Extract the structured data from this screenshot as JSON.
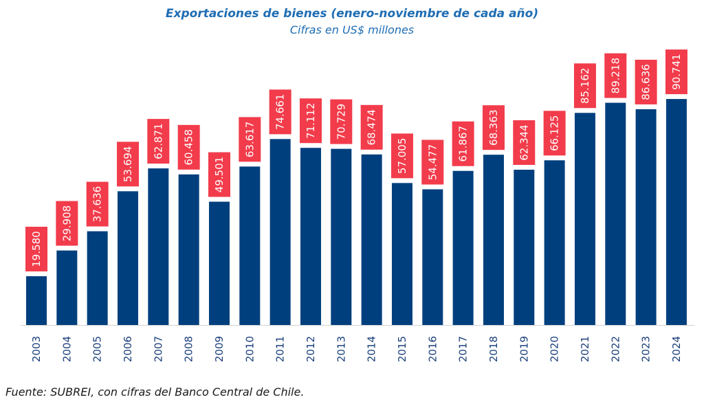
{
  "chart_data": {
    "type": "bar",
    "title": "Exportaciones de bienes (enero-noviembre de cada año)",
    "subtitle": "Cifras en US$ millones",
    "categories": [
      "2003",
      "2004",
      "2005",
      "2006",
      "2007",
      "2008",
      "2009",
      "2010",
      "2011",
      "2012",
      "2013",
      "2014",
      "2015",
      "2016",
      "2017",
      "2018",
      "2019",
      "2020",
      "2021",
      "2022",
      "2023",
      "2024"
    ],
    "values": [
      19580,
      29908,
      37636,
      53694,
      62871,
      60458,
      49501,
      63617,
      74661,
      71112,
      70729,
      68474,
      57005,
      54477,
      61867,
      68363,
      62344,
      66125,
      85162,
      89218,
      86636,
      90741
    ],
    "value_labels": [
      "19.580",
      "29.908",
      "37.636",
      "53.694",
      "62.871",
      "60.458",
      "49.501",
      "63.617",
      "74.661",
      "71.112",
      "70.729",
      "68.474",
      "57.005",
      "54.477",
      "61.867",
      "68.363",
      "62.344",
      "66.125",
      "85.162",
      "89.218",
      "86.636",
      "90.741"
    ],
    "xlabel": "",
    "ylabel": "",
    "ylim": [
      0,
      91000
    ],
    "grid": false,
    "colors": {
      "bar": "#003f7d",
      "label_box": "#f23c4b",
      "title": "#1f6db3",
      "axis_text": "#1a3f7a"
    }
  },
  "source_note": "Fuente: SUBREI, con cifras del Banco Central de Chile."
}
